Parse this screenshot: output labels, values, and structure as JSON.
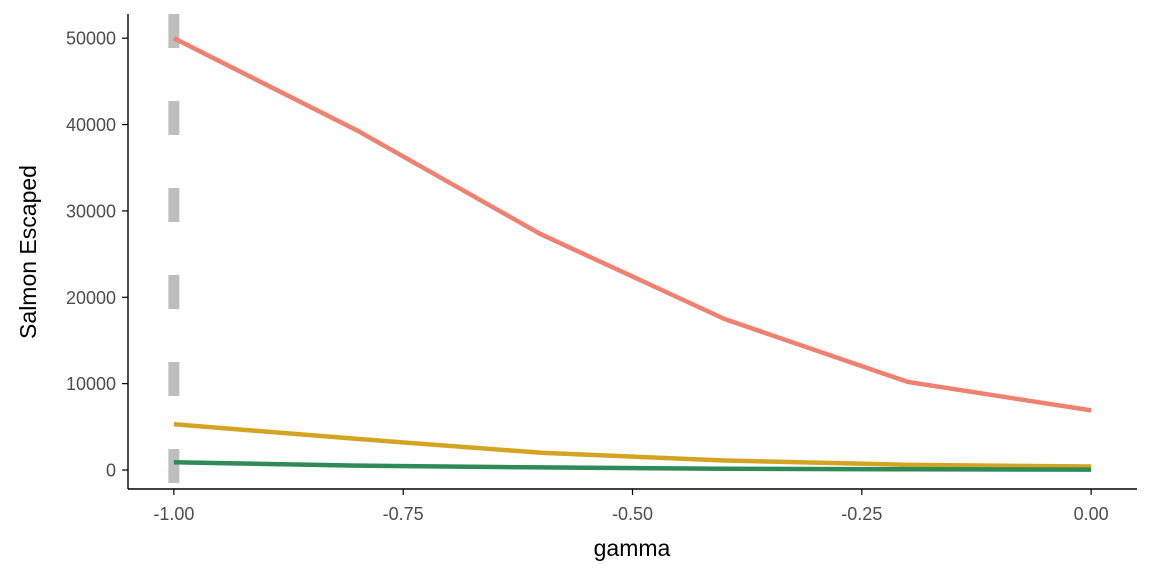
{
  "chart_data": {
    "type": "line",
    "title": "",
    "xlabel": "gamma",
    "ylabel": "Salmon Escaped",
    "xlim": [
      -1.05,
      0.05
    ],
    "ylim": [
      -2200,
      52800
    ],
    "x_ticks": [
      -1.0,
      -0.75,
      -0.5,
      -0.25,
      0.0
    ],
    "x_tick_labels": [
      "-1.00",
      "-0.75",
      "-0.50",
      "-0.25",
      "0.00"
    ],
    "y_ticks": [
      0,
      10000,
      20000,
      30000,
      40000,
      50000
    ],
    "y_tick_labels": [
      "0",
      "10000",
      "20000",
      "30000",
      "40000",
      "50000"
    ],
    "grid": false,
    "legend": "none",
    "reference_line": {
      "x": -1.0,
      "style": "dashed",
      "color": "#bebebe"
    },
    "x": [
      -1.0,
      -0.8,
      -0.6,
      -0.4,
      -0.2,
      0.0
    ],
    "series": [
      {
        "color": "#f08070",
        "values": [
          50000,
          39300,
          27300,
          17500,
          10200,
          6900
        ]
      },
      {
        "color": "#d4a321",
        "values": [
          5300,
          3600,
          2000,
          1100,
          600,
          400
        ]
      },
      {
        "color": "#2e8b57",
        "values": [
          900,
          500,
          300,
          150,
          80,
          50
        ]
      }
    ]
  }
}
